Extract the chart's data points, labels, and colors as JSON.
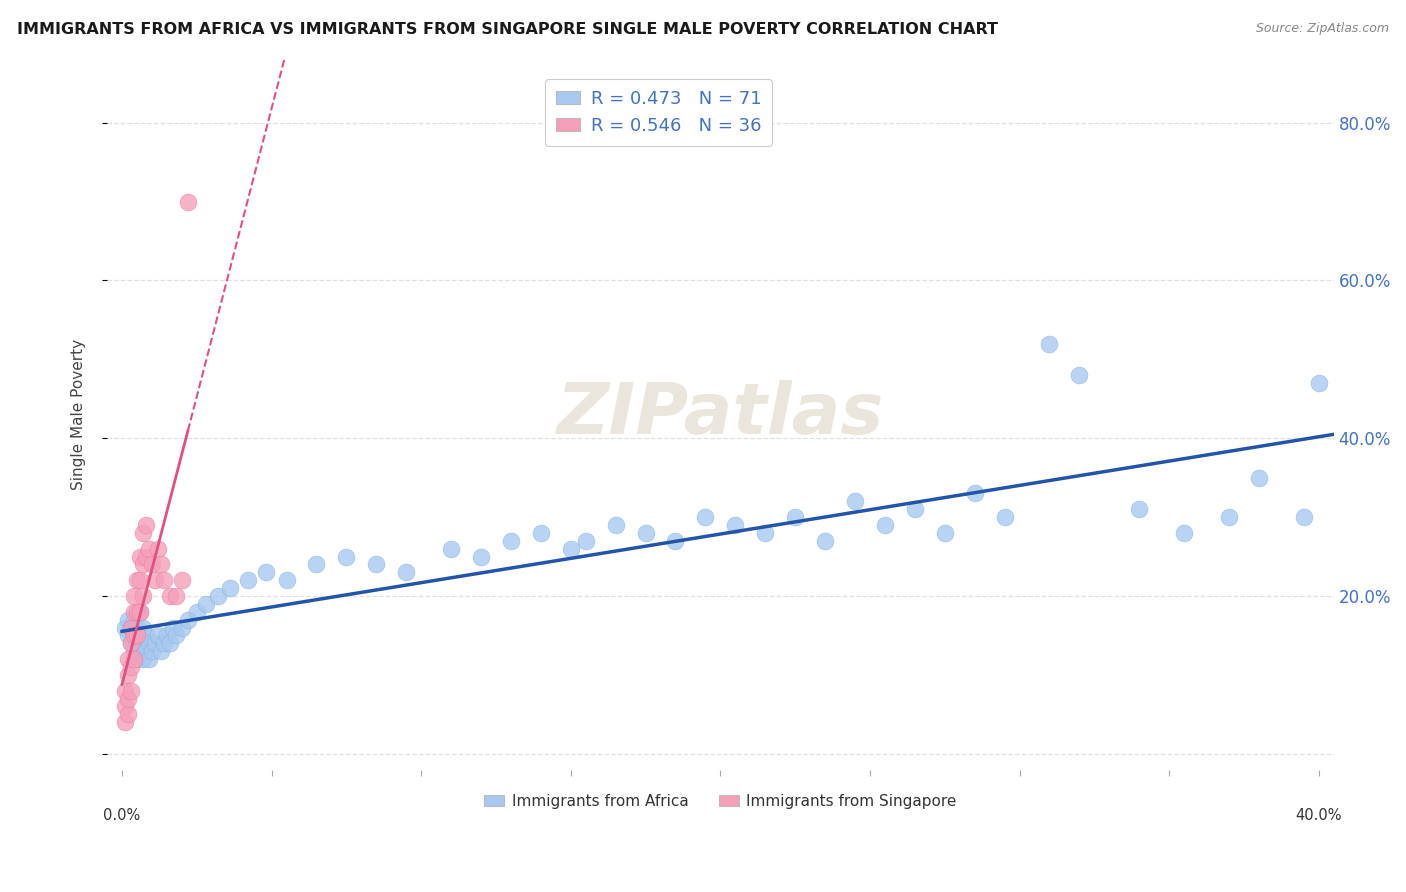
{
  "title": "IMMIGRANTS FROM AFRICA VS IMMIGRANTS FROM SINGAPORE SINGLE MALE POVERTY CORRELATION CHART",
  "source": "Source: ZipAtlas.com",
  "ylabel": "Single Male Poverty",
  "y_tick_positions": [
    0.0,
    0.2,
    0.4,
    0.6,
    0.8
  ],
  "y_tick_labels": [
    "",
    "20.0%",
    "40.0%",
    "60.0%",
    "80.0%"
  ],
  "x_lim": [
    -0.005,
    0.405
  ],
  "y_lim": [
    -0.02,
    0.88
  ],
  "africa_color": "#a8c8f0",
  "africa_edge": "#7aaad0",
  "singapore_color": "#f5a0b8",
  "singapore_edge": "#e070a0",
  "trend_africa_color": "#2255aa",
  "trend_singapore_color": "#e05080",
  "legend_line1": "R = 0.473   N = 71",
  "legend_line2": "R = 0.546   N = 36",
  "legend_text_color": "#4472c4",
  "watermark": "ZIPatlas",
  "background_color": "#ffffff",
  "grid_color": "#dddddd",
  "africa_x": [
    0.001,
    0.002,
    0.002,
    0.003,
    0.003,
    0.004,
    0.004,
    0.004,
    0.005,
    0.005,
    0.005,
    0.006,
    0.006,
    0.006,
    0.007,
    0.007,
    0.007,
    0.008,
    0.008,
    0.009,
    0.009,
    0.01,
    0.011,
    0.012,
    0.013,
    0.014,
    0.015,
    0.016,
    0.017,
    0.018,
    0.02,
    0.022,
    0.025,
    0.028,
    0.032,
    0.036,
    0.042,
    0.048,
    0.055,
    0.065,
    0.075,
    0.085,
    0.095,
    0.11,
    0.12,
    0.13,
    0.14,
    0.15,
    0.155,
    0.165,
    0.175,
    0.185,
    0.195,
    0.205,
    0.215,
    0.225,
    0.235,
    0.245,
    0.255,
    0.265,
    0.275,
    0.285,
    0.295,
    0.31,
    0.32,
    0.34,
    0.355,
    0.37,
    0.38,
    0.395,
    0.4
  ],
  "africa_y": [
    0.16,
    0.15,
    0.17,
    0.14,
    0.16,
    0.13,
    0.15,
    0.17,
    0.12,
    0.14,
    0.16,
    0.13,
    0.15,
    0.18,
    0.12,
    0.14,
    0.16,
    0.13,
    0.15,
    0.12,
    0.14,
    0.13,
    0.14,
    0.15,
    0.13,
    0.14,
    0.15,
    0.14,
    0.16,
    0.15,
    0.16,
    0.17,
    0.18,
    0.19,
    0.2,
    0.21,
    0.22,
    0.23,
    0.22,
    0.24,
    0.25,
    0.24,
    0.23,
    0.26,
    0.25,
    0.27,
    0.28,
    0.26,
    0.27,
    0.29,
    0.28,
    0.27,
    0.3,
    0.29,
    0.28,
    0.3,
    0.27,
    0.32,
    0.29,
    0.31,
    0.28,
    0.33,
    0.3,
    0.52,
    0.48,
    0.31,
    0.28,
    0.3,
    0.35,
    0.3,
    0.47
  ],
  "singapore_x": [
    0.001,
    0.001,
    0.001,
    0.002,
    0.002,
    0.002,
    0.002,
    0.003,
    0.003,
    0.003,
    0.003,
    0.004,
    0.004,
    0.004,
    0.004,
    0.005,
    0.005,
    0.005,
    0.006,
    0.006,
    0.006,
    0.007,
    0.007,
    0.007,
    0.008,
    0.008,
    0.009,
    0.01,
    0.011,
    0.012,
    0.013,
    0.014,
    0.016,
    0.018,
    0.02,
    0.022
  ],
  "singapore_y": [
    0.04,
    0.06,
    0.08,
    0.05,
    0.07,
    0.1,
    0.12,
    0.08,
    0.11,
    0.14,
    0.16,
    0.12,
    0.15,
    0.18,
    0.2,
    0.15,
    0.18,
    0.22,
    0.18,
    0.22,
    0.25,
    0.2,
    0.24,
    0.28,
    0.25,
    0.29,
    0.26,
    0.24,
    0.22,
    0.26,
    0.24,
    0.22,
    0.2,
    0.2,
    0.22,
    0.7
  ]
}
